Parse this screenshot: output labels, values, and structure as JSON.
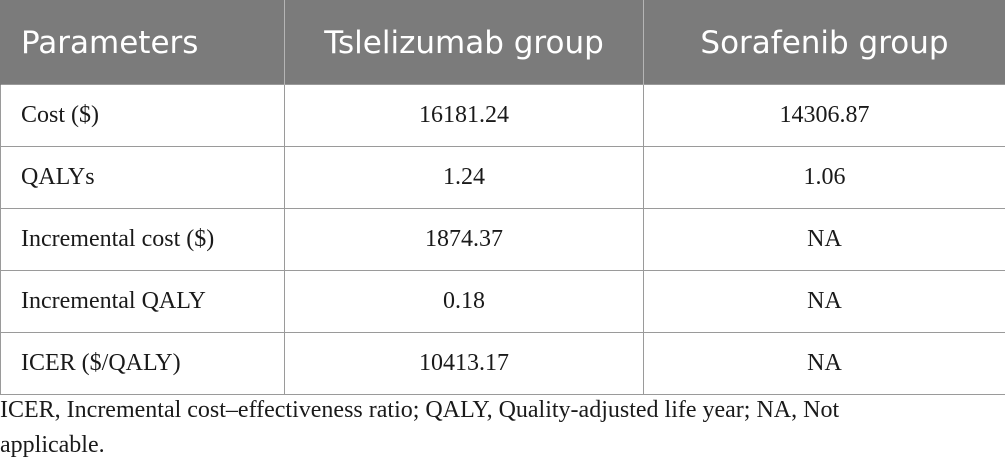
{
  "table": {
    "headers": [
      "Parameters",
      "Tslelizumab group",
      "Sorafenib group"
    ],
    "rows": [
      [
        "Cost ($)",
        "16181.24",
        "14306.87"
      ],
      [
        "QALYs",
        "1.24",
        "1.06"
      ],
      [
        "Incremental cost ($)",
        "1874.37",
        "NA"
      ],
      [
        "Incremental QALY",
        "0.18",
        "NA"
      ],
      [
        "ICER ($/QALY)",
        "10413.17",
        "NA"
      ]
    ]
  },
  "footnote": {
    "line1": "ICER, Incremental cost–effectiveness ratio; QALY, Quality-adjusted life year; NA, Not",
    "line2": "applicable."
  }
}
